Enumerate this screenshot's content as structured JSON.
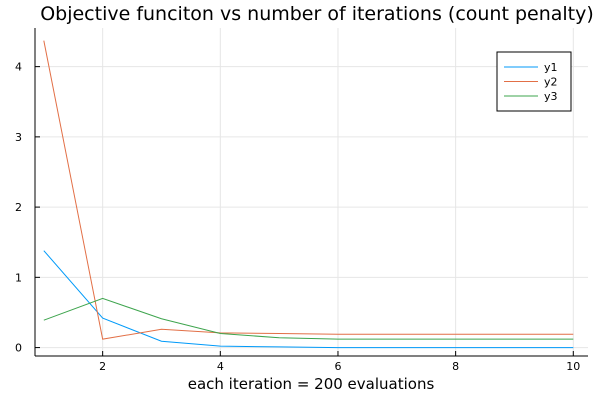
{
  "chart_data": {
    "type": "line",
    "title": "Objective funciton vs number of iterations (count penalty)",
    "xlabel": "each iteration = 200 evaluations",
    "ylabel": "",
    "xlim": [
      0.85,
      10.25
    ],
    "ylim": [
      -0.12,
      4.55
    ],
    "xticks": [
      2,
      4,
      6,
      8,
      10
    ],
    "yticks": [
      0,
      1,
      2,
      3,
      4
    ],
    "grid": true,
    "legend_position": "top-right",
    "x": [
      1,
      2,
      3,
      4,
      5,
      6,
      7,
      8,
      9,
      10
    ],
    "series": [
      {
        "name": "y1",
        "color": "#009af9",
        "values": [
          1.38,
          0.42,
          0.09,
          0.02,
          0.01,
          0.0,
          0.0,
          0.0,
          0.0,
          0.0
        ]
      },
      {
        "name": "y2",
        "color": "#e26f46",
        "values": [
          4.37,
          0.12,
          0.26,
          0.21,
          0.2,
          0.19,
          0.19,
          0.19,
          0.19,
          0.19
        ]
      },
      {
        "name": "y3",
        "color": "#3da44d",
        "values": [
          0.39,
          0.7,
          0.41,
          0.2,
          0.14,
          0.12,
          0.12,
          0.12,
          0.12,
          0.12
        ]
      }
    ]
  }
}
